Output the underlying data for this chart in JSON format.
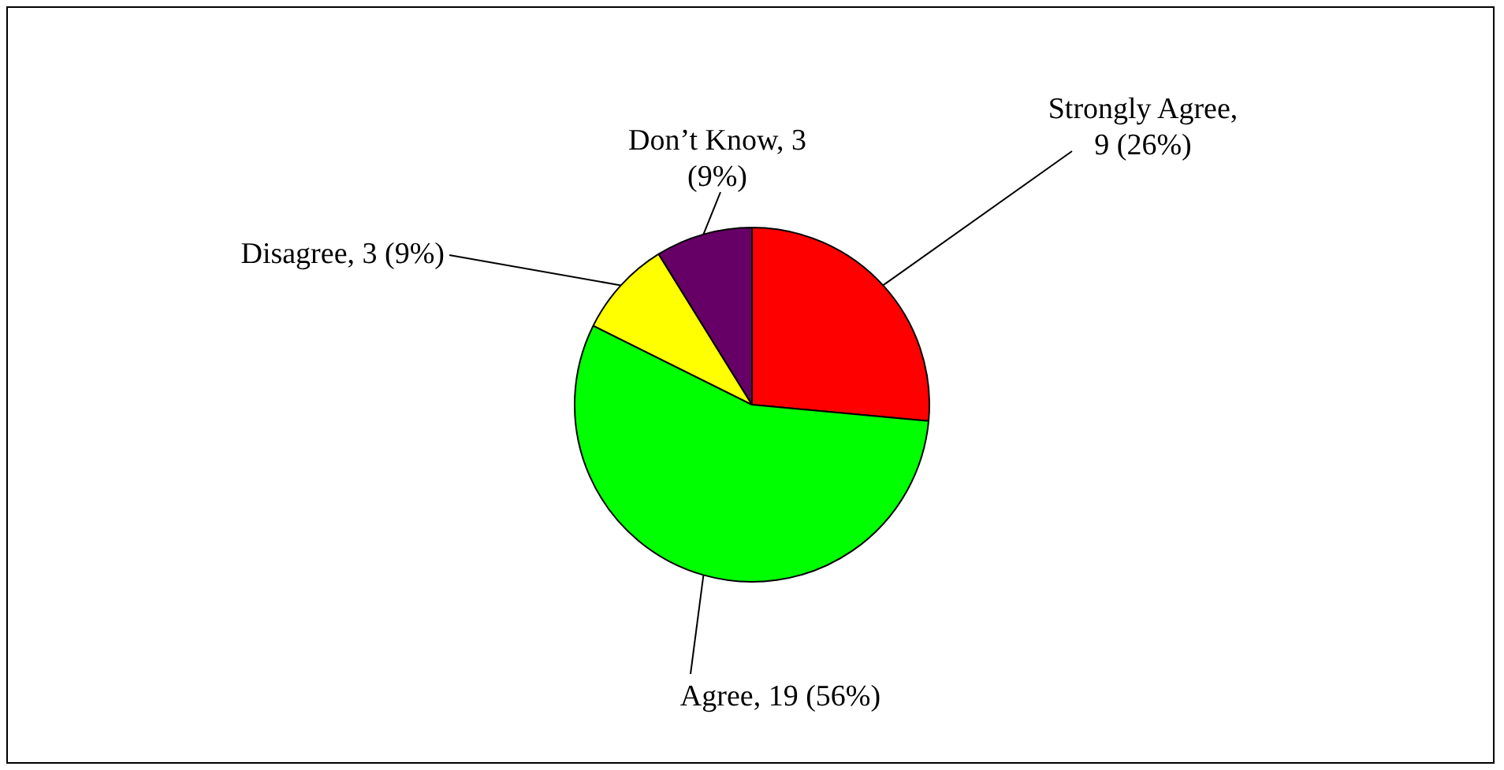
{
  "chart_data": {
    "type": "pie",
    "categories": [
      "Strongly Agree",
      "Agree",
      "Disagree",
      "Don’t Know"
    ],
    "values": [
      9,
      19,
      3,
      3
    ],
    "colors": [
      "#ff0000",
      "#00ff00",
      "#ffff00",
      "#660066"
    ],
    "value_labels": [
      ", 9 (26%)",
      ", 19 (56%)",
      ", 3 (9%)",
      ", 3 (9%)"
    ],
    "legend": false
  }
}
